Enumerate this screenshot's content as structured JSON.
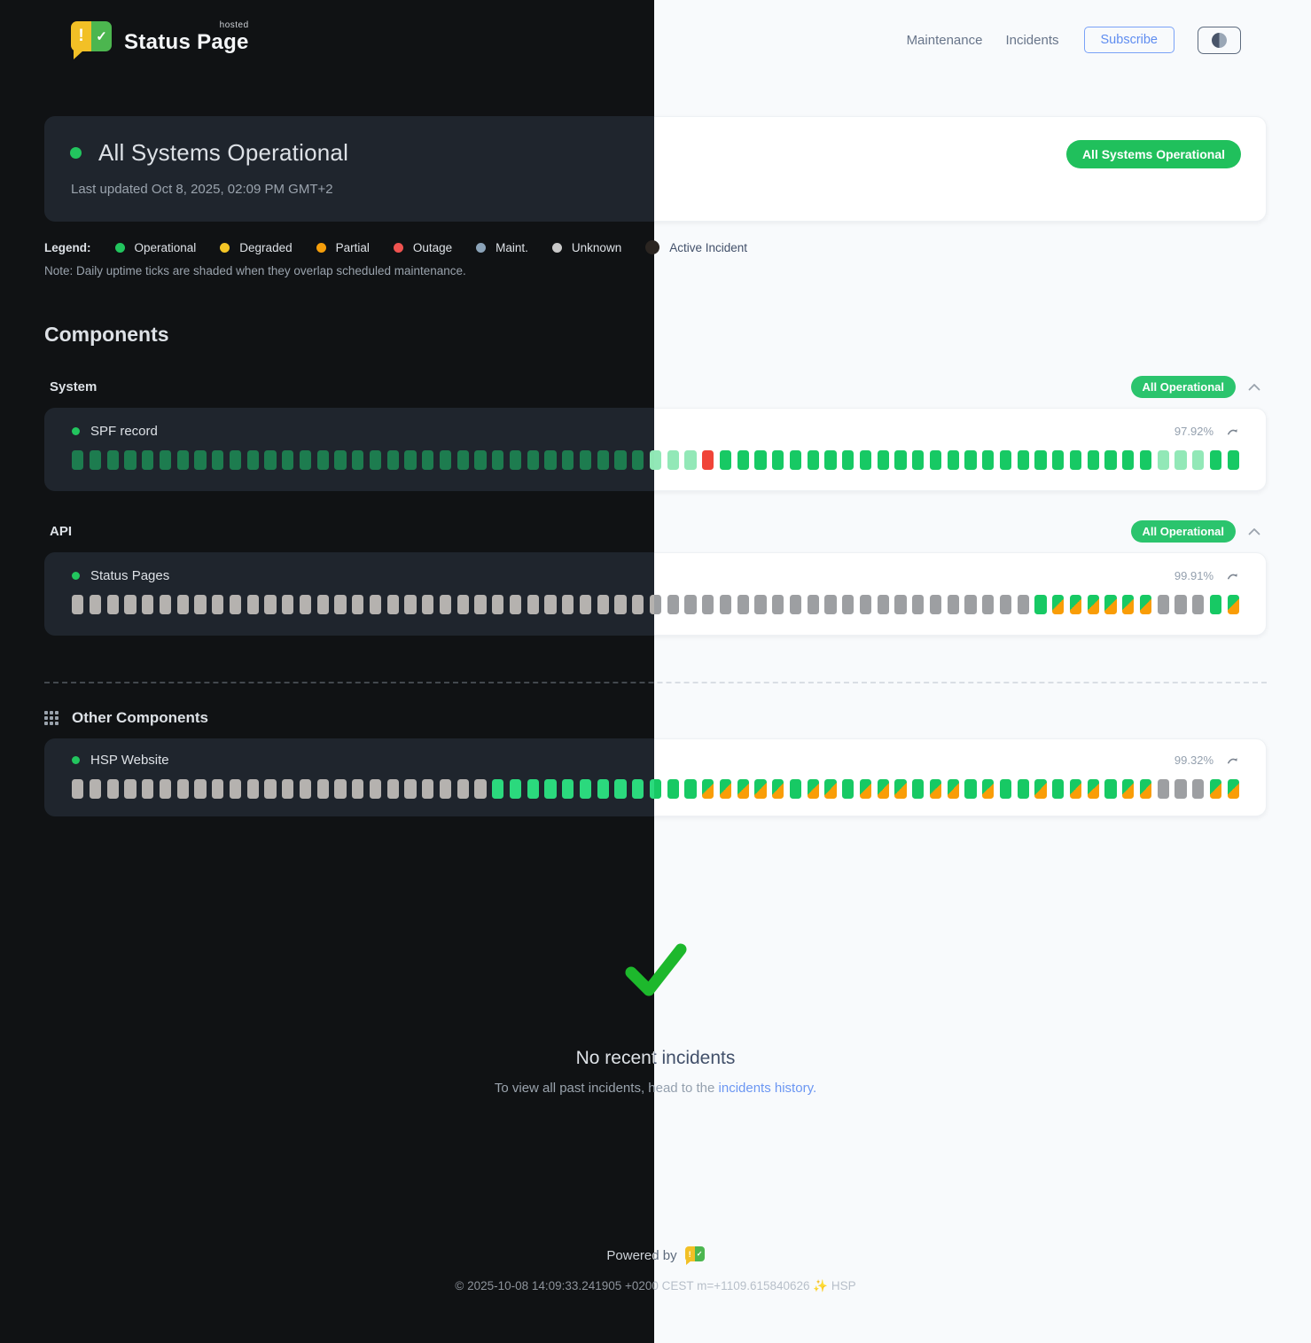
{
  "header": {
    "brand": "Status Page",
    "brand_sup": "hosted",
    "nav": [
      "Maintenance",
      "Incidents"
    ],
    "subscribe_label": "Subscribe",
    "theme_toggle_icon": "contrast-half-circle"
  },
  "banner": {
    "title": "All Systems Operational",
    "last_updated": "Last updated Oct 8, 2025, 02:09 PM GMT+2",
    "badge": "All Systems Operational"
  },
  "legend": {
    "label": "Legend:",
    "items": [
      {
        "label": "Operational",
        "color": "#22c55e"
      },
      {
        "label": "Degraded",
        "color": "#f4c525"
      },
      {
        "label": "Partial",
        "color": "#f59e0b"
      },
      {
        "label": "Outage",
        "color": "#ef5350"
      },
      {
        "label": "Maint.",
        "color": "#8ba3b8"
      },
      {
        "label": "Unknown",
        "color": "#c9c9c9"
      },
      {
        "label": "Active Incident",
        "color": "#2b2521"
      }
    ],
    "note": "Note: Daily uptime ticks are shaded when they overlap scheduled maintenance."
  },
  "components": {
    "heading": "Components",
    "groups": [
      {
        "name": "System",
        "badge": "All Operational",
        "items": [
          {
            "name": "SPF record",
            "uptime": "97.92%",
            "ticks": [
              "gd",
              "gd",
              "gd",
              "gd",
              "gd",
              "gd",
              "gd",
              "gd",
              "gd",
              "gd",
              "gd",
              "gd",
              "gd",
              "gd",
              "gd",
              "gd",
              "gd",
              "gd",
              "gd",
              "gd",
              "gd",
              "gd",
              "gd",
              "gd",
              "gd",
              "gd",
              "gd",
              "gd",
              "gd",
              "gd",
              "gd",
              "gd",
              "gd",
              "gl",
              "gl",
              "gl",
              "r",
              "g",
              "g",
              "g",
              "g",
              "g",
              "g",
              "g",
              "g",
              "g",
              "g",
              "g",
              "g",
              "g",
              "g",
              "g",
              "g",
              "g",
              "g",
              "g",
              "g",
              "g",
              "g",
              "g",
              "g",
              "g",
              "gl",
              "gl",
              "gl",
              "g",
              "g"
            ]
          }
        ]
      },
      {
        "name": "API",
        "badge": "All Operational",
        "items": [
          {
            "name": "Status Pages",
            "uptime": "99.91%",
            "ticks": [
              "u",
              "u",
              "u",
              "u",
              "u",
              "u",
              "u",
              "u",
              "u",
              "u",
              "u",
              "u",
              "u",
              "u",
              "u",
              "u",
              "u",
              "u",
              "u",
              "u",
              "u",
              "u",
              "u",
              "u",
              "u",
              "u",
              "u",
              "u",
              "u",
              "u",
              "u",
              "u",
              "u",
              "u",
              "u",
              "u",
              "u",
              "u",
              "u",
              "u",
              "u",
              "u",
              "u",
              "u",
              "u",
              "u",
              "u",
              "u",
              "u",
              "u",
              "u",
              "u",
              "u",
              "u",
              "u",
              "g",
              "m",
              "m",
              "m",
              "m",
              "m",
              "m",
              "u",
              "u",
              "u",
              "g",
              "m"
            ]
          }
        ]
      }
    ],
    "other": {
      "heading": "Other Components",
      "items": [
        {
          "name": "HSP Website",
          "uptime": "99.32%",
          "ticks": [
            "u",
            "u",
            "u",
            "u",
            "u",
            "u",
            "u",
            "u",
            "u",
            "u",
            "u",
            "u",
            "u",
            "u",
            "u",
            "u",
            "u",
            "u",
            "u",
            "u",
            "u",
            "u",
            "u",
            "u",
            "g",
            "g",
            "g",
            "g",
            "g",
            "g",
            "g",
            "g",
            "g",
            "g",
            "g",
            "g",
            "m",
            "m",
            "m",
            "m",
            "m",
            "g",
            "m",
            "m",
            "g",
            "m",
            "m",
            "m",
            "g",
            "m",
            "m",
            "g",
            "m",
            "g",
            "g",
            "m",
            "g",
            "m",
            "m",
            "g",
            "m",
            "m",
            "u",
            "u",
            "u",
            "m",
            "m"
          ]
        }
      ]
    }
  },
  "incidents": {
    "title": "No recent incidents",
    "subtitle_prefix": "To view all past incidents, head to the ",
    "link_label": "incidents history."
  },
  "footer": {
    "powered_by": "Powered by",
    "copyright": "© 2025-10-08 14:09:33.241905 +0200 CEST m=+1109.615840626 ✨ HSP"
  },
  "colors": {
    "status_ok_badge": "#20c05c",
    "tick_operational_light": "#17c964",
    "tick_operational_dark": "#2bd97d",
    "tick_operational_muted_dark": "#1d7c4f",
    "tick_operational_pale": "#92e8b7",
    "tick_outage": "#f04438",
    "tick_unknown": "#9d9fa2",
    "tick_maintenance_overlap": "#f99d07",
    "link_blue": "#6b96f2",
    "subscribe_blue": "#5f8df0",
    "check_green": "#1db82c",
    "dark_bg": "#101214",
    "light_bg": "#f8fafc"
  }
}
